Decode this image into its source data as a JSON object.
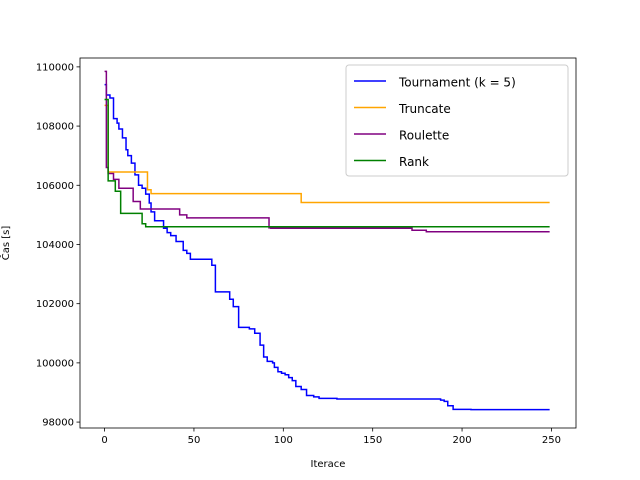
{
  "chart_data": {
    "type": "line",
    "xlabel": "Iterace",
    "ylabel": "Čas [s]",
    "xlim": [
      -13.75,
      263.75
    ],
    "ylim": [
      97800,
      110300
    ],
    "x_ticks": [
      0,
      50,
      100,
      150,
      200,
      250
    ],
    "y_ticks": [
      98000,
      100000,
      102000,
      104000,
      106000,
      108000,
      110000
    ],
    "x_tick_labels": [
      "0",
      "50",
      "100",
      "150",
      "200",
      "250"
    ],
    "y_tick_labels": [
      "98000",
      "100000",
      "102000",
      "104000",
      "106000",
      "108000",
      "110000"
    ],
    "grid": false,
    "legend_position": "top-right",
    "series": [
      {
        "name": "Tournament (k = 5)",
        "color": "#0000ff",
        "step": true,
        "x": [
          0,
          1,
          3,
          5,
          7,
          8,
          10,
          12,
          13,
          15,
          17,
          19,
          21,
          23,
          25,
          26,
          28,
          33,
          35,
          37,
          40,
          44,
          46,
          48,
          52,
          56,
          60,
          62,
          64,
          67,
          70,
          72,
          73,
          75,
          77,
          79,
          81,
          84,
          87,
          89,
          91,
          93,
          94,
          95,
          97,
          99,
          101,
          103,
          105,
          107,
          110,
          113,
          117,
          120,
          127,
          130,
          133,
          137,
          150,
          180,
          188,
          190,
          192,
          195,
          200,
          205,
          249
        ],
        "y": [
          109400,
          109050,
          108950,
          108250,
          108100,
          107900,
          107600,
          107200,
          107000,
          106750,
          106350,
          106000,
          105900,
          105700,
          105400,
          105100,
          104800,
          104550,
          104400,
          104300,
          104100,
          103800,
          103700,
          103500,
          103500,
          103500,
          103300,
          102400,
          102400,
          102400,
          102150,
          101900,
          101900,
          101200,
          101200,
          101200,
          101150,
          101000,
          100600,
          100200,
          100050,
          100050,
          100000,
          99850,
          99700,
          99650,
          99600,
          99500,
          99400,
          99200,
          99100,
          98900,
          98850,
          98800,
          98800,
          98780,
          98780,
          98780,
          98780,
          98780,
          98740,
          98700,
          98550,
          98430,
          98430,
          98420,
          98420
        ]
      },
      {
        "name": "Truncate",
        "color": "#ffa500",
        "step": true,
        "x": [
          0,
          2,
          24,
          26,
          110,
          249
        ],
        "y": [
          108700,
          106450,
          105850,
          105720,
          105420,
          105420
        ]
      },
      {
        "name": "Roulette",
        "color": "#800080",
        "step": true,
        "x": [
          0,
          1,
          2,
          5,
          8,
          16,
          20,
          42,
          46,
          92,
          93,
          172,
          180,
          249
        ],
        "y": [
          109850,
          106600,
          106400,
          106200,
          105900,
          105450,
          105200,
          105000,
          104900,
          104560,
          104550,
          104480,
          104430,
          104430
        ]
      },
      {
        "name": "Rank",
        "color": "#008000",
        "step": true,
        "x": [
          0,
          2,
          6,
          9,
          21,
          23,
          249
        ],
        "y": [
          108900,
          106150,
          105800,
          105050,
          104700,
          104600,
          104600
        ]
      }
    ]
  }
}
